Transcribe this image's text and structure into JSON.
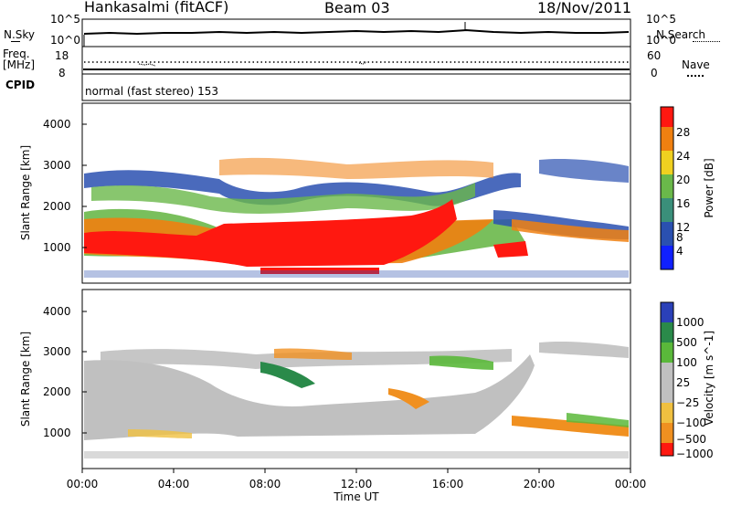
{
  "header": {
    "title": "Hankasalmi (fitACF)",
    "beam": "Beam 03",
    "date": "18/Nov/2011"
  },
  "noise_panel": {
    "left_label": "N.Sky",
    "right_label": "N.Search",
    "left_ticks": [
      "10^5",
      "10^0"
    ],
    "right_ticks": [
      "10^5",
      "10^0"
    ]
  },
  "freq_panel": {
    "left_label_line1": "Freq.",
    "left_label_line2": "[MHz]",
    "left_ticks": [
      "18",
      "8"
    ],
    "right_ticks": [
      "60",
      "0"
    ],
    "right_label": "Nave"
  },
  "cpid": {
    "label": "CPID",
    "text": "normal (fast stereo) 153"
  },
  "chart_data": [
    {
      "type": "heatmap",
      "panel": "power",
      "ylabel": "Slant Range [km]",
      "yticks": [
        "1000",
        "2000",
        "3000",
        "4000"
      ],
      "ylim": [
        250,
        4550
      ],
      "colorbar": {
        "label": "Power [dB]",
        "ticks": [
          "4",
          "8",
          "12",
          "16",
          "20",
          "24",
          "28"
        ],
        "colors": [
          "#1020ff",
          "#2a50b0",
          "#3a8f7a",
          "#6ab84a",
          "#f0d020",
          "#f08010",
          "#ff1810"
        ]
      }
    },
    {
      "type": "heatmap",
      "panel": "velocity",
      "ylabel": "Slant Range [km]",
      "yticks": [
        "1000",
        "2000",
        "3000",
        "4000"
      ],
      "ylim": [
        250,
        4550
      ],
      "colorbar": {
        "label": "Velocity [m s^-1]",
        "ticks": [
          "1000",
          "500",
          "100",
          "25",
          "−25",
          "−100",
          "−500",
          "−1000"
        ],
        "colors": [
          "#2a40b8",
          "#2a8a4a",
          "#5ab83a",
          "#c0c0c0",
          "#f0c040",
          "#f09020",
          "#ff1810"
        ]
      }
    }
  ],
  "time_axis": {
    "label": "Time UT",
    "ticks": [
      "00:00",
      "04:00",
      "08:00",
      "12:00",
      "16:00",
      "20:00",
      "00:00"
    ]
  }
}
